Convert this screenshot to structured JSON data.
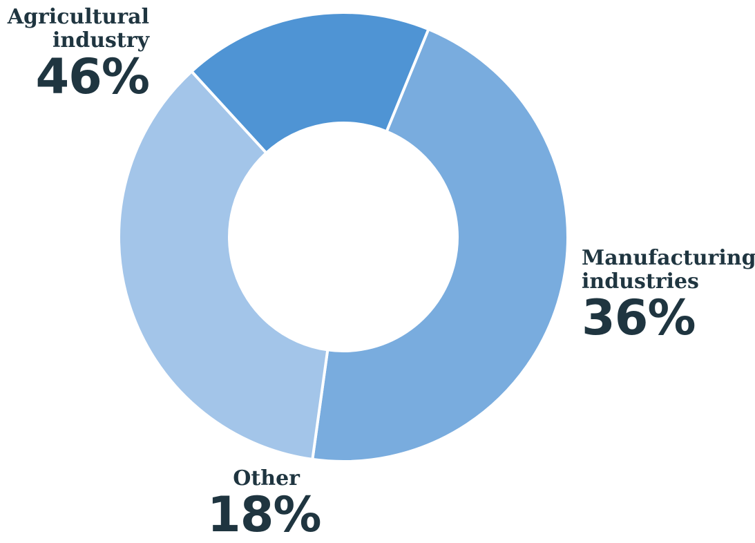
{
  "chart_data": {
    "type": "pie",
    "donut": true,
    "title": "",
    "slices": [
      {
        "label": "Agricultural industry",
        "label_lines": [
          "Agricultural",
          "industry"
        ],
        "value": 46,
        "display": "46%",
        "color": "#79acde"
      },
      {
        "label": "Manufacturing industries",
        "label_lines": [
          "Manufacturing",
          "industries"
        ],
        "value": 36,
        "display": "36%",
        "color": "#a3c5e9"
      },
      {
        "label": "Other",
        "label_lines": [
          "Other"
        ],
        "value": 18,
        "display": "18%",
        "color": "#4f94d4"
      }
    ],
    "legend": "none"
  }
}
